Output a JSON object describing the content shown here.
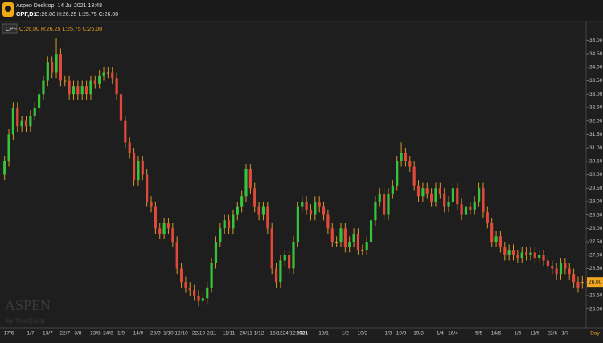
{
  "header": {
    "app": "Aspen Desktop, 14 Jul 2021 13:48",
    "symbol": "CPF,D1",
    "ohlc": "O:26.00 H:26.25 L:25.75 C:26.00"
  },
  "watermark": {
    "brand": "ASPEN",
    "by": "by ThaiQuest"
  },
  "chart_data": {
    "type": "candlestick",
    "x_unit": "Day",
    "categories": [
      null,
      "17/6",
      null,
      null,
      null,
      null,
      "1/7",
      null,
      null,
      null,
      "13/7",
      null,
      null,
      null,
      "22/7",
      null,
      null,
      "3/8",
      null,
      null,
      null,
      "13/8",
      null,
      null,
      "24/8",
      null,
      null,
      "1/9",
      null,
      null,
      null,
      "14/9",
      null,
      null,
      null,
      "23/9",
      null,
      null,
      "1/10",
      null,
      null,
      "12/10",
      null,
      null,
      null,
      "22/10",
      null,
      null,
      "2/11",
      null,
      null,
      null,
      "11/11",
      null,
      null,
      null,
      "20/11",
      null,
      null,
      "1/12",
      null,
      null,
      null,
      "15/12",
      null,
      null,
      "24/12",
      null,
      null,
      "2021",
      null,
      null,
      null,
      null,
      "18/1",
      null,
      null,
      null,
      null,
      "1/2",
      null,
      null,
      null,
      "10/2",
      null,
      null,
      null,
      null,
      null,
      "1/3",
      null,
      null,
      "10/3",
      null,
      null,
      null,
      "19/3",
      null,
      null,
      null,
      null,
      "1/4",
      null,
      null,
      "16/4",
      null,
      null,
      null,
      null,
      null,
      "5/5",
      null,
      null,
      null,
      "14/5",
      null,
      null,
      null,
      null,
      "1/6",
      null,
      null,
      null,
      "11/6",
      null,
      null,
      null,
      "22/6",
      null,
      null,
      "1/7",
      null,
      null,
      null,
      null
    ],
    "series": [
      {
        "name": "CPF",
        "ohlc_label": "O:26.00 H:26.25 L:25.75 C:26.00",
        "last_value_label": "26.00",
        "up_color": "#36c23a",
        "down_color": "#e0483a",
        "wick_color": "#d8992a",
        "open": [
          30.0,
          30.5,
          31.5,
          32.5,
          31.8,
          32.0,
          31.8,
          32.2,
          32.5,
          33.0,
          33.5,
          34.2,
          33.8,
          34.5,
          33.5,
          33.5,
          33.0,
          33.3,
          33.0,
          33.3,
          33.0,
          33.5,
          33.4,
          33.7,
          33.8,
          33.8,
          33.6,
          33.0,
          32.0,
          31.2,
          30.8,
          29.8,
          30.5,
          30.0,
          29.0,
          28.8,
          28.0,
          27.8,
          28.2,
          28.0,
          27.5,
          26.5,
          26.0,
          25.8,
          25.7,
          25.5,
          25.3,
          25.4,
          25.8,
          26.7,
          27.5,
          28.0,
          28.3,
          28.0,
          28.5,
          28.8,
          29.2,
          30.2,
          29.5,
          28.8,
          28.5,
          28.8,
          28.0,
          26.5,
          26.0,
          26.8,
          27.0,
          26.5,
          27.5,
          28.8,
          29.0,
          28.7,
          28.5,
          29.0,
          28.8,
          28.5,
          28.0,
          27.5,
          27.5,
          28.0,
          27.3,
          27.5,
          27.8,
          27.2,
          27.2,
          27.5,
          28.3,
          29.0,
          29.3,
          28.5,
          29.3,
          29.6,
          30.5,
          30.8,
          30.5,
          30.3,
          29.6,
          29.2,
          29.5,
          29.3,
          29.0,
          29.5,
          29.3,
          28.8,
          29.0,
          29.5,
          28.9,
          28.5,
          28.8,
          28.7,
          29.0,
          29.5,
          28.6,
          28.2,
          27.5,
          27.7,
          27.3,
          27.0,
          27.2,
          27.0,
          26.9,
          27.1,
          27.0,
          27.1,
          26.9,
          27.0,
          26.8,
          26.6,
          26.5,
          26.3,
          26.7,
          26.5,
          26.3,
          26.0,
          26.0
        ],
        "high": [
          30.7,
          31.7,
          32.7,
          32.7,
          32.2,
          32.2,
          32.4,
          32.7,
          33.2,
          33.7,
          34.4,
          34.4,
          35.1,
          34.7,
          33.7,
          33.7,
          33.5,
          33.5,
          33.5,
          33.5,
          33.7,
          33.7,
          33.9,
          34.0,
          34.0,
          34.0,
          33.8,
          33.2,
          32.2,
          31.4,
          31.0,
          30.7,
          30.7,
          30.2,
          29.2,
          29.0,
          28.2,
          28.4,
          28.4,
          28.2,
          27.7,
          26.7,
          26.2,
          26.0,
          25.9,
          25.7,
          25.6,
          26.0,
          26.9,
          27.7,
          28.2,
          28.5,
          28.5,
          28.7,
          29.0,
          29.4,
          30.4,
          30.4,
          29.7,
          29.0,
          29.0,
          29.0,
          28.2,
          26.7,
          27.0,
          27.2,
          27.2,
          27.7,
          29.0,
          29.2,
          29.2,
          28.9,
          29.2,
          29.2,
          29.0,
          28.7,
          28.2,
          27.7,
          28.2,
          28.2,
          27.7,
          28.0,
          28.0,
          27.4,
          27.7,
          28.5,
          29.2,
          29.5,
          29.5,
          29.5,
          29.8,
          30.7,
          31.2,
          31.0,
          30.7,
          30.5,
          29.8,
          29.7,
          29.7,
          29.5,
          29.7,
          29.7,
          29.5,
          29.2,
          29.7,
          29.7,
          29.1,
          29.0,
          29.0,
          29.2,
          29.7,
          29.7,
          28.8,
          28.4,
          27.9,
          27.9,
          27.5,
          27.4,
          27.4,
          27.2,
          27.3,
          27.3,
          27.3,
          27.3,
          27.2,
          27.2,
          27.0,
          26.8,
          26.7,
          26.9,
          26.9,
          26.7,
          26.5,
          26.2,
          26.25
        ],
        "low": [
          29.8,
          30.3,
          31.3,
          31.6,
          31.6,
          31.6,
          31.6,
          32.0,
          32.3,
          32.8,
          33.3,
          33.6,
          33.6,
          33.3,
          33.3,
          32.8,
          32.8,
          32.8,
          32.8,
          32.8,
          32.8,
          33.2,
          33.2,
          33.5,
          33.6,
          33.4,
          32.8,
          31.8,
          31.0,
          30.6,
          29.6,
          29.6,
          29.8,
          28.8,
          28.6,
          27.8,
          27.6,
          27.6,
          27.8,
          27.3,
          26.3,
          25.8,
          25.6,
          25.5,
          25.3,
          25.1,
          25.1,
          25.2,
          25.6,
          26.5,
          27.3,
          27.8,
          27.8,
          27.8,
          28.3,
          28.6,
          29.0,
          29.3,
          28.6,
          28.3,
          28.3,
          27.8,
          26.3,
          25.8,
          25.8,
          26.6,
          26.3,
          26.3,
          27.3,
          28.6,
          28.5,
          28.3,
          28.3,
          28.6,
          28.3,
          27.8,
          27.3,
          27.3,
          27.3,
          27.1,
          27.1,
          27.3,
          27.0,
          27.0,
          27.0,
          27.3,
          28.1,
          28.8,
          28.3,
          28.3,
          29.1,
          29.4,
          30.3,
          30.3,
          30.1,
          29.4,
          29.0,
          29.0,
          29.1,
          28.8,
          28.8,
          29.1,
          28.6,
          28.6,
          28.8,
          28.7,
          28.3,
          28.3,
          28.5,
          28.5,
          28.8,
          28.4,
          28.0,
          27.3,
          27.3,
          27.1,
          26.8,
          26.8,
          26.8,
          26.7,
          26.7,
          26.8,
          26.8,
          26.7,
          26.7,
          26.6,
          26.4,
          26.3,
          26.1,
          26.1,
          26.3,
          26.1,
          25.8,
          25.6,
          25.75
        ],
        "close": [
          30.5,
          31.5,
          32.5,
          31.8,
          32.0,
          31.8,
          32.2,
          32.5,
          33.0,
          33.5,
          34.2,
          33.8,
          34.5,
          33.5,
          33.5,
          33.0,
          33.3,
          33.0,
          33.3,
          33.0,
          33.5,
          33.4,
          33.7,
          33.8,
          33.8,
          33.6,
          33.0,
          32.0,
          31.2,
          30.8,
          29.8,
          30.5,
          30.0,
          29.0,
          28.8,
          28.0,
          27.8,
          28.2,
          28.0,
          27.5,
          26.5,
          26.0,
          25.8,
          25.7,
          25.5,
          25.3,
          25.4,
          25.8,
          26.7,
          27.5,
          28.0,
          28.3,
          28.0,
          28.5,
          28.8,
          29.2,
          30.2,
          29.5,
          28.8,
          28.5,
          28.8,
          28.0,
          26.5,
          26.0,
          26.8,
          27.0,
          26.5,
          27.5,
          28.8,
          29.0,
          28.7,
          28.5,
          29.0,
          28.8,
          28.5,
          28.0,
          27.5,
          27.5,
          28.0,
          27.3,
          27.5,
          27.8,
          27.2,
          27.2,
          27.5,
          28.3,
          29.0,
          29.3,
          28.5,
          29.3,
          29.6,
          30.5,
          30.8,
          30.5,
          30.3,
          29.6,
          29.2,
          29.5,
          29.3,
          29.0,
          29.5,
          29.3,
          28.8,
          29.0,
          29.5,
          28.9,
          28.5,
          28.8,
          28.7,
          29.0,
          29.5,
          28.6,
          28.2,
          27.5,
          27.7,
          27.3,
          27.0,
          27.2,
          27.0,
          26.9,
          27.1,
          27.0,
          27.1,
          26.9,
          27.0,
          26.8,
          26.6,
          26.5,
          26.3,
          26.7,
          26.5,
          26.3,
          26.0,
          25.8,
          26.0
        ]
      }
    ],
    "ylim": [
      24.3,
      35.7
    ],
    "yticks": [
      {
        "value": 25,
        "label": "25.00"
      },
      {
        "value": 25.5,
        "label": "25.50"
      },
      {
        "value": 26,
        "label": "26.00"
      },
      {
        "value": 26.5,
        "label": "26.50"
      },
      {
        "value": 27,
        "label": "27.00"
      },
      {
        "value": 27.5,
        "label": "27.50"
      },
      {
        "value": 28,
        "label": "28.00"
      },
      {
        "value": 28.5,
        "label": "28.50"
      },
      {
        "value": 29,
        "label": "29.00"
      },
      {
        "value": 29.5,
        "label": "29.50"
      },
      {
        "value": 30,
        "label": "30.00"
      },
      {
        "value": 30.5,
        "label": "30.50"
      },
      {
        "value": 31,
        "label": "31.00"
      },
      {
        "value": 31.5,
        "label": "31.50"
      },
      {
        "value": 32,
        "label": "32.00"
      },
      {
        "value": 32.5,
        "label": "32.50"
      },
      {
        "value": 33,
        "label": "33.00"
      },
      {
        "value": 33.5,
        "label": "33.50"
      },
      {
        "value": 34,
        "label": "34.00"
      },
      {
        "value": 34.5,
        "label": "34.50"
      },
      {
        "value": 35,
        "label": "35.00"
      }
    ],
    "grid": false
  }
}
